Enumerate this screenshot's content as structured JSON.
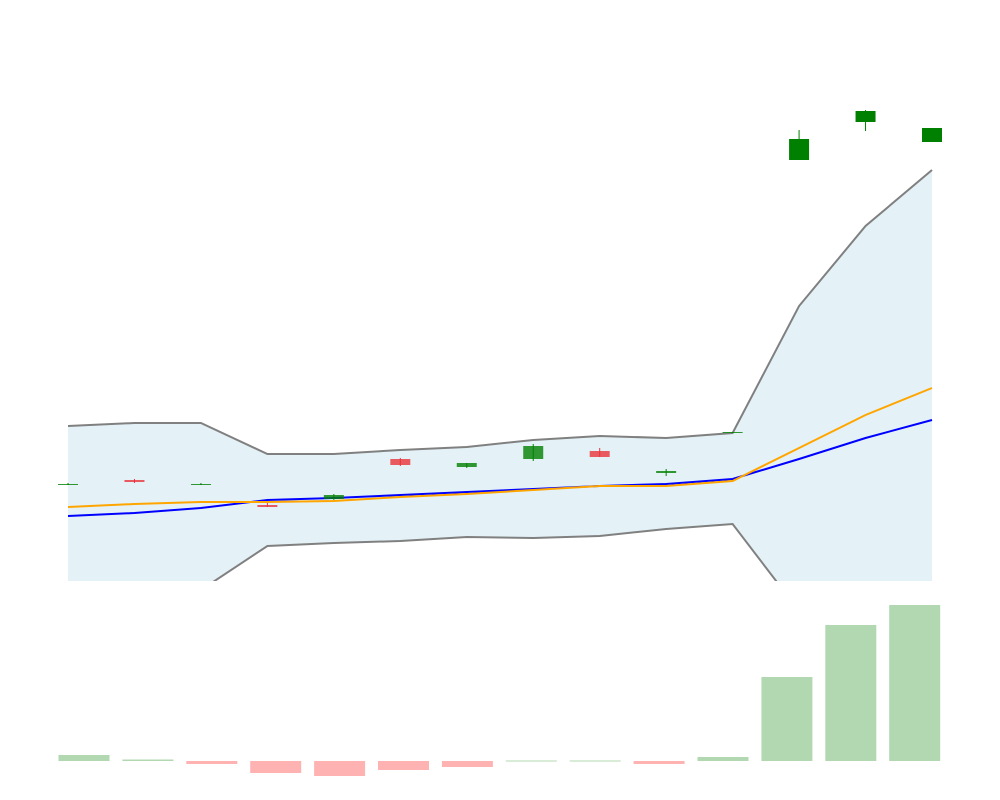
{
  "chart_data": [
    {
      "type": "candlestick",
      "open": [
        97,
        101,
        97,
        76,
        82,
        122,
        114,
        122,
        130,
        108,
        148,
        421,
        459,
        439
      ],
      "high": [
        98,
        102,
        98,
        78,
        87,
        123,
        118,
        137,
        133,
        112,
        149,
        451,
        471,
        453
      ],
      "low": [
        96,
        98,
        96,
        74,
        81,
        115,
        113,
        120,
        124,
        105,
        148,
        421,
        450,
        439
      ],
      "close": [
        97,
        99,
        97,
        74,
        86,
        116,
        118,
        135,
        124,
        110,
        149,
        442,
        470,
        453
      ],
      "up_color": "#008000",
      "down_color": "#e8333a",
      "band": {
        "upper": [
          155,
          158,
          158,
          127,
          127,
          131,
          134,
          141,
          145,
          143,
          148,
          275,
          355,
          411
        ],
        "lower": [
          -19,
          -19,
          -9,
          35,
          38,
          40,
          44,
          43,
          45,
          52,
          57,
          -30,
          -59,
          -39
        ],
        "color": "#808080",
        "fill": "#e4f2f7"
      },
      "lines": [
        {
          "color": "#0000ff",
          "values": [
            65,
            68,
            73,
            81,
            83,
            86,
            89,
            92,
            95,
            97,
            102,
            122,
            143,
            161
          ]
        },
        {
          "color": "#ffa500",
          "values": [
            74,
            77,
            79,
            79,
            80,
            84,
            87,
            91,
            95,
            95,
            100,
            133,
            166,
            193
          ]
        }
      ],
      "ylim": [
        0,
        581
      ]
    },
    {
      "type": "bar",
      "values": [
        6,
        1.5,
        -3,
        -12,
        -15,
        -9,
        -6,
        0.5,
        0.5,
        -3,
        4,
        84,
        136,
        156
      ],
      "positive_color": "#b2d8b2",
      "negative_color": "#ffb2b2",
      "ylim": [
        -20,
        160
      ]
    }
  ]
}
